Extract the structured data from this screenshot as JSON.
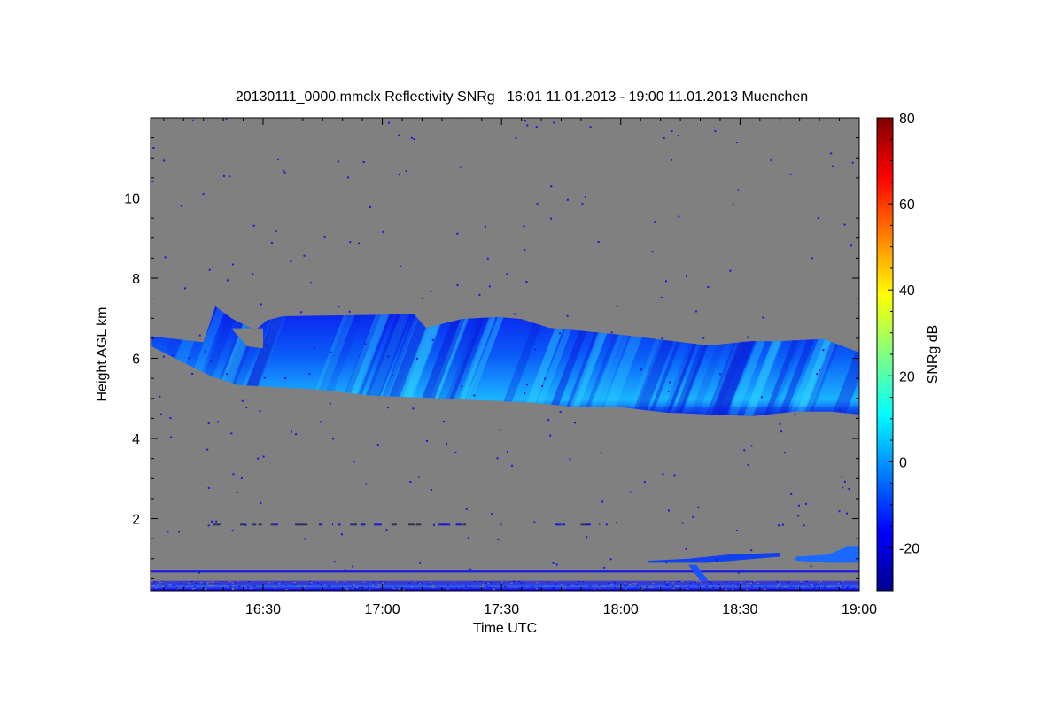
{
  "chart_data": {
    "type": "heatmap",
    "title": "20130111_0000.mmclx Reflectivity SNRg   16:01 11.01.2013 - 19:00 11.01.2013 Muenchen",
    "xlabel": "Time UTC",
    "ylabel": "Height AGL km",
    "colorbar_label": "SNRg dB",
    "xlim_minutes_after_16utc": [
      1.7,
      180
    ],
    "ylim_km": [
      0.2,
      12.0
    ],
    "x_ticks": [
      {
        "v": 30,
        "label": "16:30"
      },
      {
        "v": 60,
        "label": "17:00"
      },
      {
        "v": 90,
        "label": "17:30"
      },
      {
        "v": 120,
        "label": "18:00"
      },
      {
        "v": 150,
        "label": "18:30"
      },
      {
        "v": 180,
        "label": "19:00"
      }
    ],
    "y_ticks": [
      {
        "v": 2,
        "label": "2"
      },
      {
        "v": 4,
        "label": "4"
      },
      {
        "v": 6,
        "label": "6"
      },
      {
        "v": 8,
        "label": "8"
      },
      {
        "v": 10,
        "label": "10"
      }
    ],
    "colorbar_range": [
      -30,
      80
    ],
    "colorbar_ticks": [
      {
        "v": -20,
        "label": "-20"
      },
      {
        "v": 0,
        "label": "0"
      },
      {
        "v": 20,
        "label": "20"
      },
      {
        "v": 40,
        "label": "40"
      },
      {
        "v": 60,
        "label": "60"
      },
      {
        "v": 80,
        "label": "80"
      }
    ],
    "colormap": "jet",
    "background_color": "#808080",
    "features": {
      "main_cloud_top": [
        [
          2,
          6.55
        ],
        [
          15,
          6.4
        ],
        [
          18,
          7.3
        ],
        [
          22,
          7.0
        ],
        [
          28,
          6.7
        ],
        [
          31,
          6.95
        ],
        [
          35,
          7.05
        ],
        [
          68,
          7.1
        ],
        [
          71,
          6.76
        ],
        [
          80,
          6.98
        ],
        [
          89,
          7.03
        ],
        [
          95,
          6.98
        ],
        [
          102,
          6.76
        ],
        [
          120,
          6.59
        ],
        [
          142,
          6.32
        ],
        [
          153,
          6.43
        ],
        [
          160,
          6.43
        ],
        [
          171,
          6.48
        ],
        [
          180,
          6.15
        ]
      ],
      "main_cloud_base": [
        [
          2,
          6.3
        ],
        [
          8,
          5.99
        ],
        [
          17,
          5.55
        ],
        [
          24,
          5.33
        ],
        [
          31,
          5.29
        ],
        [
          44,
          5.22
        ],
        [
          57,
          5.07
        ],
        [
          75,
          5.0
        ],
        [
          98,
          4.89
        ],
        [
          109,
          4.78
        ],
        [
          120,
          4.78
        ],
        [
          131,
          4.65
        ],
        [
          142,
          4.6
        ],
        [
          153,
          4.56
        ],
        [
          164,
          4.67
        ],
        [
          173,
          4.67
        ],
        [
          180,
          4.6
        ]
      ],
      "main_cloud_snr_db_range": [
        -25,
        10
      ],
      "low_cloud": {
        "t_start": 164,
        "t_end": 180,
        "base_km": 0.9,
        "top_km": 1.3
      },
      "drizzle_layer": {
        "t_start": 127,
        "t_end": 160,
        "height_km": 0.95
      },
      "clutter_line_km": 0.68,
      "surface_clutter_km": [
        0.2,
        0.45
      ],
      "faint_layer_km": 1.85
    }
  }
}
